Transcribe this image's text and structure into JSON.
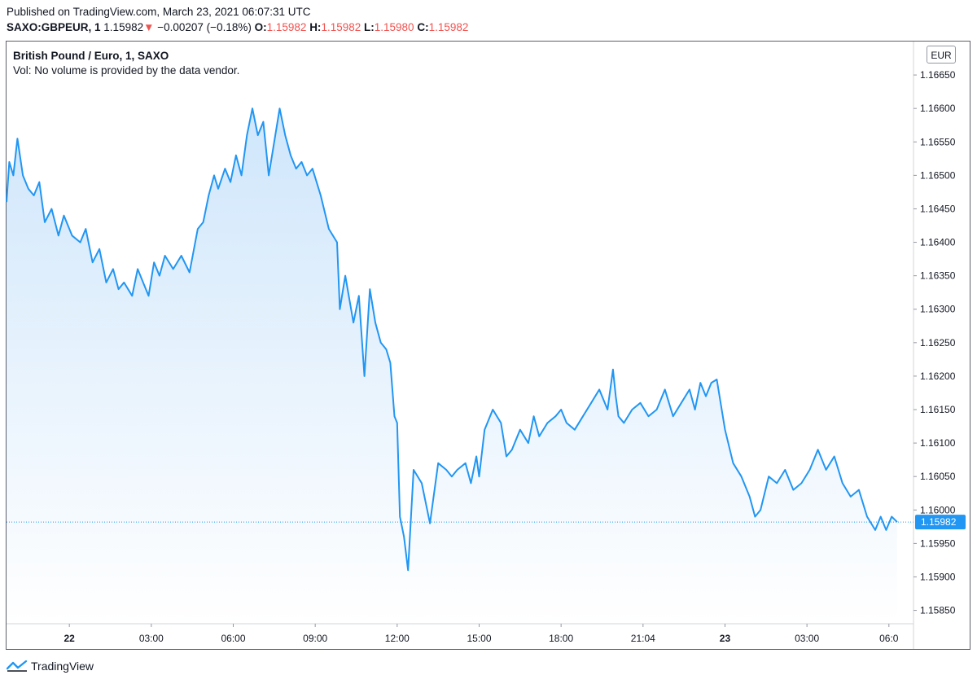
{
  "header": {
    "published": "Published on TradingView.com, March 23, 2021 06:07:31 UTC",
    "symbol": "SAXO:GBPEUR, 1",
    "last": "1.15982",
    "change": "−0.00207 (−0.18%)",
    "o_label": "O:",
    "o_value": "1.15982",
    "h_label": "H:",
    "h_value": "1.15982",
    "l_label": "L:",
    "l_value": "1.15980",
    "c_label": "C:",
    "c_value": "1.15982"
  },
  "legend": {
    "title": "British Pound / Euro, 1, SAXO",
    "vol": "Vol: No volume is provided by the data vendor."
  },
  "currency_badge": "EUR",
  "branding": "TradingView",
  "colors": {
    "line": "#2196f3",
    "fill_top": "#cfe6fb",
    "fill_bottom": "#ffffff",
    "down": "#ef5350",
    "price_tag": "#2196f3"
  },
  "chart_data": {
    "type": "area",
    "last_price": 1.15982,
    "last_price_label": "1.15982",
    "ylim": [
      1.1583,
      1.167
    ],
    "y_ticks": [
      "1.15850",
      "1.15900",
      "1.15950",
      "1.16000",
      "1.16050",
      "1.16100",
      "1.16150",
      "1.16200",
      "1.16250",
      "1.16300",
      "1.16350",
      "1.16400",
      "1.16450",
      "1.16500",
      "1.16550",
      "1.16600",
      "1.16650"
    ],
    "x_ticks": [
      {
        "label": "22",
        "bold": true,
        "x": 1.1
      },
      {
        "label": "03:00",
        "bold": false,
        "x": 4.1
      },
      {
        "label": "06:00",
        "bold": false,
        "x": 7.1
      },
      {
        "label": "09:00",
        "bold": false,
        "x": 10.1
      },
      {
        "label": "12:00",
        "bold": false,
        "x": 13.1
      },
      {
        "label": "15:00",
        "bold": false,
        "x": 16.1
      },
      {
        "label": "18:00",
        "bold": false,
        "x": 19.1
      },
      {
        "label": "21:04",
        "bold": false,
        "x": 22.1
      },
      {
        "label": "23",
        "bold": true,
        "x": 25.1
      },
      {
        "label": "03:00",
        "bold": false,
        "x": 28.1
      },
      {
        "label": "06:0",
        "bold": false,
        "x": 31.1
      }
    ],
    "x_range": [
      -1.2,
      32.0
    ],
    "series": [
      {
        "x": [
          -1.2,
          -1.1,
          -0.95,
          -0.8,
          -0.6,
          -0.4,
          -0.2,
          0.0,
          0.2,
          0.45,
          0.7,
          0.9,
          1.2,
          1.5,
          1.7,
          1.95,
          2.2,
          2.45,
          2.7,
          2.9,
          3.1,
          3.4,
          3.6,
          3.8,
          4.0,
          4.2,
          4.4,
          4.6,
          4.9,
          5.2,
          5.5,
          5.8,
          6.0,
          6.2,
          6.4,
          6.55,
          6.8,
          7.0,
          7.2,
          7.4,
          7.6,
          7.8,
          8.0,
          8.2,
          8.4,
          8.6,
          8.8,
          9.0,
          9.2,
          9.4,
          9.6,
          9.8,
          10.0,
          10.3,
          10.6,
          10.9,
          11.0,
          11.2,
          11.5,
          11.7,
          11.9,
          12.1,
          12.3,
          12.5,
          12.7,
          12.85,
          13.0,
          13.1,
          13.2,
          13.35,
          13.5,
          13.7,
          14.0,
          14.3,
          14.6,
          14.9,
          15.1,
          15.3,
          15.6,
          15.8,
          16.0,
          16.1,
          16.3,
          16.6,
          16.9,
          17.1,
          17.3,
          17.6,
          17.9,
          18.1,
          18.3,
          18.6,
          18.9,
          19.1,
          19.3,
          19.6,
          19.9,
          20.2,
          20.5,
          20.8,
          21.0,
          21.1,
          21.2,
          21.4,
          21.7,
          22.0,
          22.3,
          22.6,
          22.9,
          23.2,
          23.5,
          23.8,
          24.0,
          24.2,
          24.4,
          24.6,
          24.8,
          25.1,
          25.4,
          25.7,
          26.0,
          26.2,
          26.4,
          26.7,
          27.0,
          27.3,
          27.6,
          27.9,
          28.2,
          28.5,
          28.8,
          29.1,
          29.4,
          29.7,
          30.0,
          30.3,
          30.6,
          30.8,
          31.0,
          31.2,
          31.4
        ],
        "y": [
          1.1646,
          1.1652,
          1.165,
          1.16555,
          1.165,
          1.1648,
          1.1647,
          1.1649,
          1.1643,
          1.1645,
          1.1641,
          1.1644,
          1.1641,
          1.164,
          1.1642,
          1.1637,
          1.1639,
          1.1634,
          1.1636,
          1.1633,
          1.1634,
          1.1632,
          1.1636,
          1.1634,
          1.1632,
          1.1637,
          1.1635,
          1.1638,
          1.1636,
          1.1638,
          1.16355,
          1.1642,
          1.1643,
          1.1647,
          1.165,
          1.1648,
          1.1651,
          1.1649,
          1.1653,
          1.165,
          1.1656,
          1.166,
          1.1656,
          1.1658,
          1.165,
          1.1655,
          1.166,
          1.1656,
          1.1653,
          1.1651,
          1.1652,
          1.165,
          1.1651,
          1.1647,
          1.1642,
          1.164,
          1.163,
          1.1635,
          1.1628,
          1.1632,
          1.162,
          1.1633,
          1.1628,
          1.1625,
          1.1624,
          1.1622,
          1.1614,
          1.1613,
          1.1599,
          1.1596,
          1.1591,
          1.1606,
          1.1604,
          1.1598,
          1.1607,
          1.1606,
          1.1605,
          1.1606,
          1.1607,
          1.1604,
          1.1608,
          1.1605,
          1.1612,
          1.1615,
          1.1613,
          1.1608,
          1.1609,
          1.1612,
          1.161,
          1.1614,
          1.1611,
          1.1613,
          1.1614,
          1.1615,
          1.1613,
          1.1612,
          1.1614,
          1.1616,
          1.1618,
          1.1615,
          1.1621,
          1.1617,
          1.1614,
          1.1613,
          1.1615,
          1.1616,
          1.1614,
          1.1615,
          1.1618,
          1.1614,
          1.1616,
          1.1618,
          1.1615,
          1.1619,
          1.1617,
          1.1619,
          1.16195,
          1.1612,
          1.1607,
          1.1605,
          1.1602,
          1.1599,
          1.16,
          1.1605,
          1.1604,
          1.1606,
          1.1603,
          1.1604,
          1.1606,
          1.1609,
          1.1606,
          1.1608,
          1.1604,
          1.1602,
          1.1603,
          1.1599,
          1.1597,
          1.1599,
          1.1597,
          1.1599,
          1.15982
        ]
      }
    ]
  }
}
